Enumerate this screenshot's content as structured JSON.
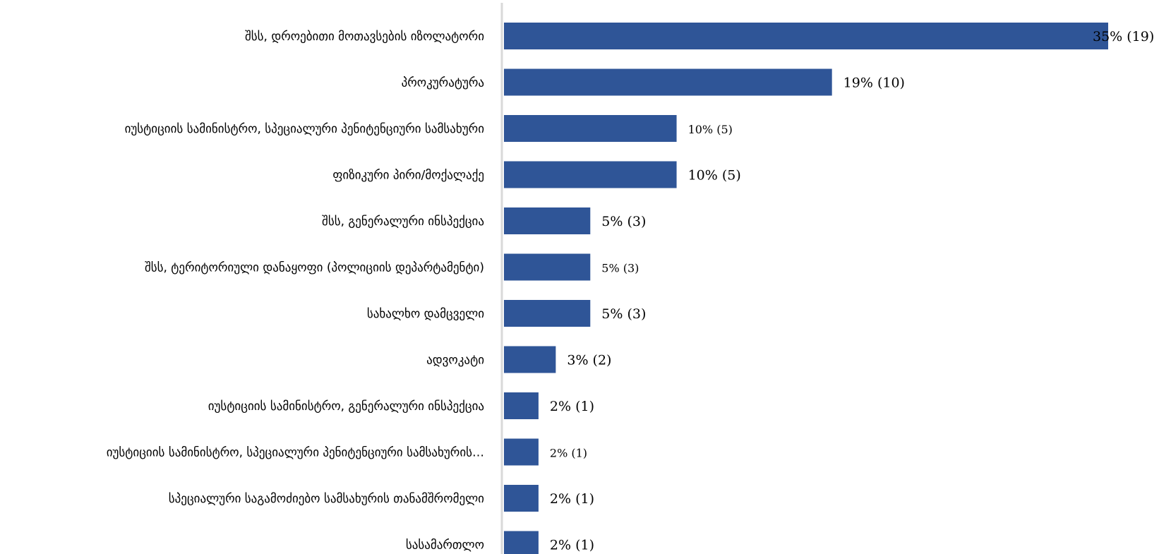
{
  "chart_data": {
    "type": "bar",
    "orientation": "horizontal",
    "categories": [
      "შსს, დროებითი მოთავსების იზოლატორი",
      "პროკურატურა",
      "იუსტიციის სამინისტრო, სპეციალური პენიტენციური სამსახური",
      "ფიზიკური პირი/მოქალაქე",
      "შსს, გენერალური ინსპექცია",
      "შსს, ტერიტორიული დანაყოფი (პოლიციის დეპარტამენტი)",
      "სახალხო დამცველი",
      "ადვოკატი",
      "იუსტიციის სამინისტრო, გენერალური ინსპექცია",
      "იუსტიციის სამინისტრო, სპეციალური პენიტენციური სამსახურის…",
      "სპეციალური საგამოძიებო სამსახურის თანამშრომელი",
      "სასამართლო"
    ],
    "values": [
      35,
      19,
      10,
      10,
      5,
      5,
      5,
      3,
      2,
      2,
      2,
      2
    ],
    "counts": [
      19,
      10,
      5,
      5,
      3,
      3,
      3,
      2,
      1,
      1,
      1,
      1
    ],
    "data_labels": [
      "35% (19)",
      "19% (10)",
      "10% (5)",
      "10% (5)",
      "5% (3)",
      "5% (3)",
      "5% (3)",
      "3% (2)",
      "2% (1)",
      "2% (1)",
      "2% (1)",
      "2% (1)"
    ],
    "small_label_rows": [
      2,
      5,
      9
    ],
    "xlim": [
      0,
      35
    ],
    "grid": false,
    "legend": "none",
    "bar_color": "#2F5597",
    "axis_color": "#D9D9D9",
    "title": "",
    "xlabel": "",
    "ylabel": ""
  }
}
